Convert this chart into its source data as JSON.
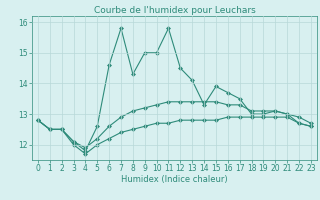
{
  "title": "Courbe de l'humidex pour Leuchars",
  "xlabel": "Humidex (Indice chaleur)",
  "x": [
    0,
    1,
    2,
    3,
    4,
    5,
    6,
    7,
    8,
    9,
    10,
    11,
    12,
    13,
    14,
    15,
    16,
    17,
    18,
    19,
    20,
    21,
    22,
    23
  ],
  "y_max": [
    12.8,
    12.5,
    12.5,
    12.1,
    11.8,
    12.6,
    14.6,
    15.8,
    14.3,
    15.0,
    15.0,
    15.8,
    14.5,
    14.1,
    13.3,
    13.9,
    13.7,
    13.5,
    13.0,
    13.0,
    13.1,
    13.0,
    12.7,
    12.6
  ],
  "y_mean": [
    12.8,
    12.5,
    12.5,
    12.1,
    11.9,
    12.2,
    12.6,
    12.9,
    13.1,
    13.2,
    13.3,
    13.4,
    13.4,
    13.4,
    13.4,
    13.4,
    13.3,
    13.3,
    13.1,
    13.1,
    13.1,
    13.0,
    12.9,
    12.7
  ],
  "y_min": [
    12.8,
    12.5,
    12.5,
    12.0,
    11.7,
    12.0,
    12.2,
    12.4,
    12.5,
    12.6,
    12.7,
    12.7,
    12.8,
    12.8,
    12.8,
    12.8,
    12.9,
    12.9,
    12.9,
    12.9,
    12.9,
    12.9,
    12.7,
    12.6
  ],
  "line_color": "#2e8b7a",
  "bg_color": "#d8f0f0",
  "grid_color": "#b8d8d8",
  "ylim": [
    11.5,
    16.2
  ],
  "yticks": [
    12,
    13,
    14,
    15,
    16
  ],
  "xticks": [
    0,
    1,
    2,
    3,
    4,
    5,
    6,
    7,
    8,
    9,
    10,
    11,
    12,
    13,
    14,
    15,
    16,
    17,
    18,
    19,
    20,
    21,
    22,
    23
  ],
  "marker": "D",
  "markersize": 2.0,
  "linewidth": 0.8,
  "title_fontsize": 6.5,
  "label_fontsize": 6.0,
  "tick_fontsize": 5.5
}
